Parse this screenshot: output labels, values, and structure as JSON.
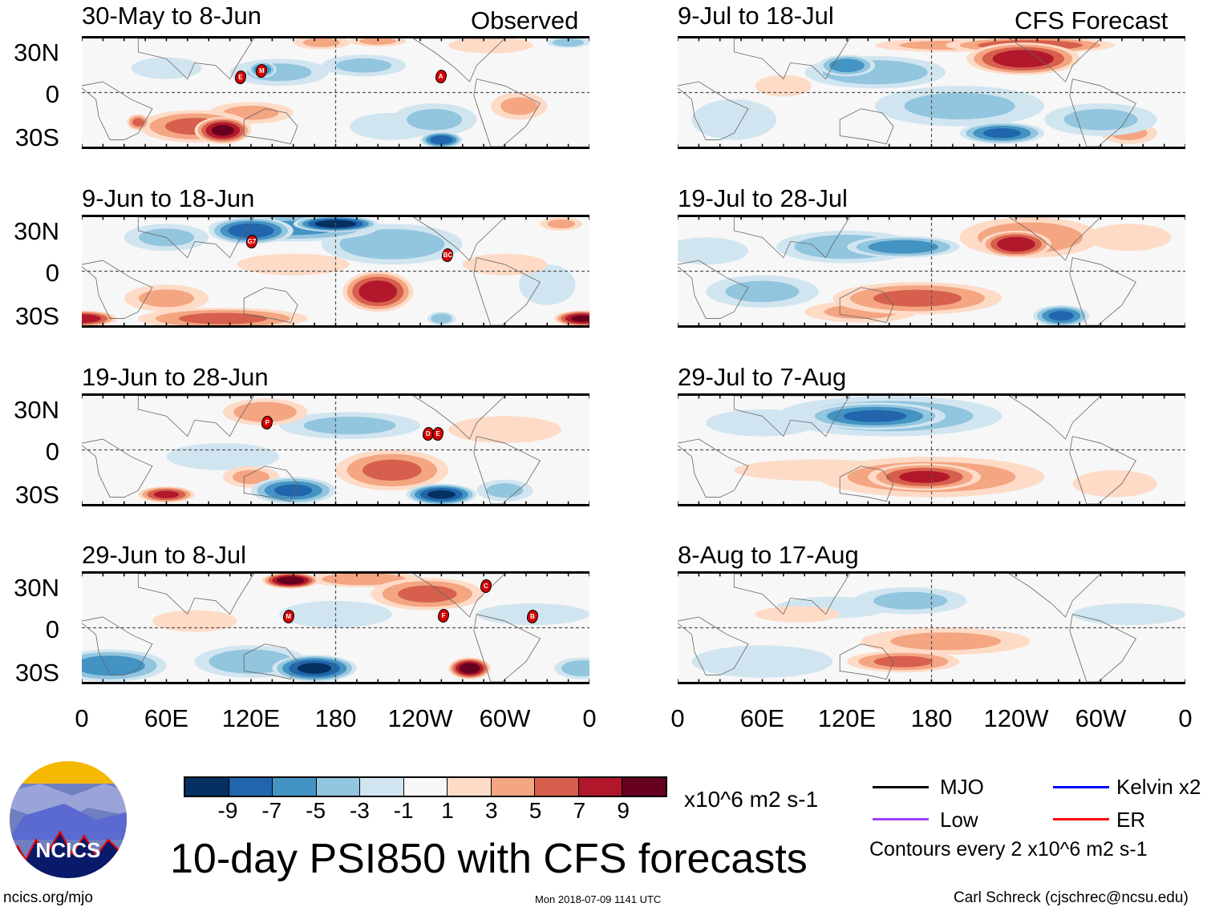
{
  "headers": {
    "left": "Observed",
    "right": "CFS Forecast"
  },
  "lat_labels": [
    "30N",
    "0",
    "30S"
  ],
  "lon_labels": [
    "0",
    "60E",
    "120E",
    "180",
    "120W",
    "60W",
    "0"
  ],
  "panels": [
    {
      "title": "30-May to 8-Jun",
      "group": "observed",
      "anomalies": [
        [
          100,
          -28,
          9,
          20,
          10
        ],
        [
          80,
          -25,
          5,
          40,
          12
        ],
        [
          40,
          -22,
          5,
          8,
          6
        ],
        [
          120,
          -15,
          3,
          30,
          8
        ],
        [
          170,
          37,
          3,
          20,
          5
        ],
        [
          210,
          38,
          3,
          20,
          4
        ],
        [
          310,
          -10,
          3,
          20,
          10
        ],
        [
          290,
          35,
          2,
          30,
          6
        ],
        [
          128,
          17,
          -6,
          10,
          6
        ],
        [
          140,
          15,
          -3,
          35,
          10
        ],
        [
          200,
          20,
          -3,
          30,
          8
        ],
        [
          255,
          -35,
          -8,
          15,
          6
        ],
        [
          250,
          -20,
          -3,
          30,
          12
        ],
        [
          220,
          -25,
          -2,
          30,
          10
        ],
        [
          345,
          37,
          -4,
          15,
          4
        ],
        [
          60,
          18,
          -2,
          25,
          8
        ]
      ],
      "storms": [
        {
          "label": "E",
          "lon": 112,
          "lat": 12
        },
        {
          "label": "M",
          "lon": 127,
          "lat": 17
        },
        {
          "label": "A",
          "lon": 254,
          "lat": 13
        }
      ]
    },
    {
      "title": "9-Jun to 18-Jun",
      "group": "observed",
      "anomalies": [
        [
          120,
          30,
          -8,
          30,
          10
        ],
        [
          180,
          35,
          -10,
          30,
          6
        ],
        [
          150,
          32,
          -5,
          60,
          10
        ],
        [
          220,
          20,
          -4,
          50,
          15
        ],
        [
          60,
          25,
          -3,
          30,
          10
        ],
        [
          255,
          -35,
          -4,
          10,
          5
        ],
        [
          330,
          -10,
          -2,
          20,
          15
        ],
        [
          210,
          -15,
          8,
          25,
          15
        ],
        [
          0,
          -35,
          8,
          25,
          6
        ],
        [
          355,
          -35,
          9,
          20,
          6
        ],
        [
          100,
          -35,
          5,
          60,
          8
        ],
        [
          60,
          -20,
          3,
          30,
          10
        ],
        [
          150,
          5,
          2,
          40,
          8
        ],
        [
          300,
          5,
          2,
          30,
          8
        ],
        [
          340,
          35,
          3,
          15,
          5
        ]
      ],
      "storms": [
        {
          "label": "G7",
          "lon": 120,
          "lat": 23
        },
        {
          "label": "BC",
          "lon": 259,
          "lat": 13
        }
      ]
    },
    {
      "title": "19-Jun to 28-Jun",
      "group": "observed",
      "anomalies": [
        [
          190,
          18,
          -3,
          50,
          10
        ],
        [
          150,
          -30,
          -7,
          30,
          10
        ],
        [
          255,
          -33,
          -9,
          25,
          8
        ],
        [
          100,
          -5,
          -2,
          40,
          10
        ],
        [
          300,
          -30,
          -3,
          20,
          8
        ],
        [
          60,
          -33,
          7,
          20,
          6
        ],
        [
          130,
          28,
          4,
          30,
          10
        ],
        [
          220,
          -15,
          5,
          40,
          15
        ],
        [
          300,
          15,
          2,
          40,
          10
        ],
        [
          120,
          -20,
          3,
          20,
          8
        ]
      ],
      "storms": [
        {
          "label": "P",
          "lon": 131,
          "lat": 21
        },
        {
          "label": "D",
          "lon": 245,
          "lat": 13
        },
        {
          "label": "E",
          "lon": 252,
          "lat": 13
        }
      ]
    },
    {
      "title": "29-Jun to 8-Jul",
      "group": "observed",
      "anomalies": [
        [
          148,
          35,
          10,
          20,
          6
        ],
        [
          200,
          36,
          4,
          40,
          6
        ],
        [
          245,
          25,
          5,
          40,
          12
        ],
        [
          275,
          -30,
          10,
          15,
          8
        ],
        [
          80,
          5,
          2,
          30,
          8
        ],
        [
          20,
          -28,
          -6,
          40,
          12
        ],
        [
          165,
          -30,
          -9,
          30,
          10
        ],
        [
          120,
          -25,
          -4,
          40,
          12
        ],
        [
          180,
          10,
          -2,
          40,
          10
        ],
        [
          320,
          10,
          -2,
          40,
          8
        ],
        [
          355,
          -30,
          -4,
          20,
          8
        ]
      ],
      "storms": [
        {
          "label": "C",
          "lon": 286,
          "lat": 32
        },
        {
          "label": "M",
          "lon": 146,
          "lat": 9
        },
        {
          "label": "F",
          "lon": 256,
          "lat": 10
        },
        {
          "label": "B",
          "lon": 319,
          "lat": 9
        }
      ]
    },
    {
      "title": "9-Jul to 18-Jul",
      "group": "forecast",
      "anomalies": [
        [
          245,
          25,
          8,
          40,
          12
        ],
        [
          250,
          35,
          6,
          60,
          6
        ],
        [
          190,
          35,
          3,
          50,
          5
        ],
        [
          75,
          5,
          2,
          20,
          8
        ],
        [
          320,
          -30,
          3,
          20,
          8
        ],
        [
          120,
          20,
          -6,
          20,
          8
        ],
        [
          140,
          15,
          -4,
          50,
          12
        ],
        [
          200,
          -10,
          -3,
          60,
          15
        ],
        [
          230,
          -30,
          -7,
          30,
          8
        ],
        [
          300,
          -20,
          -3,
          40,
          12
        ],
        [
          40,
          -20,
          -2,
          30,
          15
        ]
      ],
      "storms": []
    },
    {
      "title": "19-Jul to 28-Jul",
      "group": "forecast",
      "anomalies": [
        [
          240,
          20,
          8,
          25,
          10
        ],
        [
          250,
          25,
          4,
          50,
          15
        ],
        [
          170,
          -20,
          5,
          60,
          12
        ],
        [
          130,
          -30,
          3,
          40,
          8
        ],
        [
          320,
          25,
          2,
          30,
          10
        ],
        [
          160,
          18,
          -6,
          40,
          8
        ],
        [
          120,
          18,
          -4,
          50,
          12
        ],
        [
          60,
          -15,
          -3,
          40,
          12
        ],
        [
          272,
          -33,
          -7,
          20,
          8
        ],
        [
          20,
          15,
          -2,
          30,
          10
        ]
      ],
      "storms": []
    },
    {
      "title": "29-Jul to 7-Aug",
      "group": "forecast",
      "anomalies": [
        [
          140,
          25,
          -7,
          50,
          10
        ],
        [
          150,
          25,
          -4,
          80,
          15
        ],
        [
          60,
          20,
          -2,
          40,
          10
        ],
        [
          175,
          -20,
          7,
          40,
          10
        ],
        [
          180,
          -20,
          4,
          80,
          15
        ],
        [
          100,
          -15,
          2,
          60,
          8
        ],
        [
          310,
          -25,
          2,
          30,
          10
        ]
      ],
      "storms": []
    },
    {
      "title": "8-Aug to 17-Aug",
      "group": "forecast",
      "anomalies": [
        [
          165,
          20,
          -3,
          40,
          10
        ],
        [
          110,
          15,
          -2,
          40,
          8
        ],
        [
          60,
          -25,
          -2,
          50,
          12
        ],
        [
          320,
          10,
          -2,
          40,
          8
        ],
        [
          160,
          -25,
          5,
          40,
          8
        ],
        [
          190,
          -10,
          3,
          60,
          10
        ],
        [
          85,
          10,
          2,
          30,
          6
        ]
      ],
      "storms": []
    }
  ],
  "colorbar": {
    "labels": [
      "-9",
      "-7",
      "-5",
      "-3",
      "-1",
      "1",
      "3",
      "5",
      "7",
      "9"
    ],
    "colors": [
      "#053061",
      "#2166ac",
      "#4393c3",
      "#92c5de",
      "#d1e5f0",
      "#f7f7f7",
      "#fddbc7",
      "#f4a582",
      "#d6604d",
      "#b2182b",
      "#67001f"
    ],
    "units": "x10^6 m2 s-1"
  },
  "title": "10-day PSI850 with CFS forecasts",
  "legend": {
    "items": [
      {
        "label": "MJO",
        "color": "#000000"
      },
      {
        "label": "Kelvin x2",
        "color": "#0000ff"
      },
      {
        "label": "Low",
        "color": "#a040ff"
      },
      {
        "label": "ER",
        "color": "#ff0000"
      }
    ],
    "note": "Contours every 2 x10^6 m2 s-1"
  },
  "logo": {
    "text": "NCICS"
  },
  "footer": {
    "url": "ncics.org/mjo",
    "timestamp": "Mon 2018-07-09 1141 UTC",
    "author": "Carl Schreck (cjschrec@ncsu.edu)"
  }
}
